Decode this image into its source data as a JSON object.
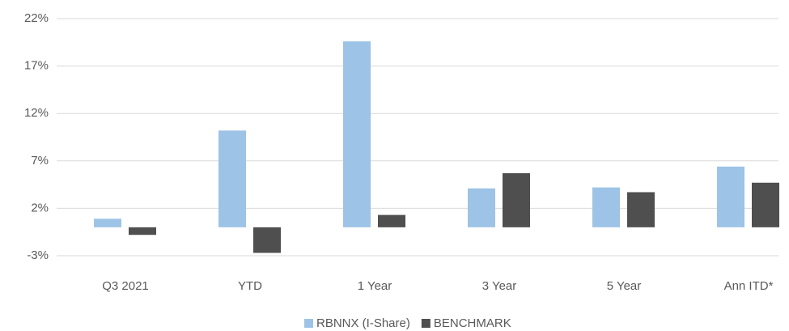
{
  "chart_data": {
    "type": "bar",
    "categories": [
      "Q3 2021",
      "YTD",
      "1 Year",
      "3 Year",
      "5 Year",
      "Ann ITD*"
    ],
    "series": [
      {
        "name": "RBNNX (I-Share)",
        "color": "#9dc3e6",
        "values": [
          0.9,
          10.2,
          19.6,
          4.1,
          4.2,
          6.4
        ]
      },
      {
        "name": "BENCHMARK",
        "color": "#4f4f4f",
        "values": [
          -0.8,
          -2.7,
          1.3,
          5.7,
          3.7,
          4.7
        ]
      }
    ],
    "ylim": [
      -3,
      22
    ],
    "yticks": [
      {
        "value": -3,
        "label": "-3%"
      },
      {
        "value": 2,
        "label": "2%"
      },
      {
        "value": 7,
        "label": "7%"
      },
      {
        "value": 12,
        "label": "12%"
      },
      {
        "value": 17,
        "label": "17%"
      },
      {
        "value": 22,
        "label": "22%"
      }
    ],
    "grid": true,
    "legend": "bottom"
  }
}
